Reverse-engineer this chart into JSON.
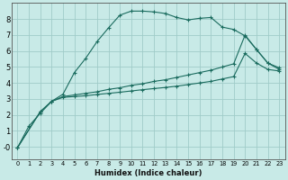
{
  "xlabel": "Humidex (Indice chaleur)",
  "background_color": "#c8eae7",
  "grid_color": "#a0ccc8",
  "line_color": "#1a6b5e",
  "xlim": [
    -0.5,
    23.5
  ],
  "ylim": [
    -0.8,
    9.0
  ],
  "xticks": [
    0,
    1,
    2,
    3,
    4,
    5,
    6,
    7,
    8,
    9,
    10,
    11,
    12,
    13,
    14,
    15,
    16,
    17,
    18,
    19,
    20,
    21,
    22,
    23
  ],
  "yticks": [
    0,
    1,
    2,
    3,
    4,
    5,
    6,
    7,
    8
  ],
  "ytick_labels": [
    "-0",
    "1",
    "2",
    "3",
    "4",
    "5",
    "6",
    "7",
    "8"
  ],
  "curve1_x": [
    0,
    1,
    2,
    3,
    4,
    5,
    6,
    7,
    8,
    9,
    10,
    11,
    12,
    13,
    14,
    15,
    16,
    17,
    18,
    19,
    20,
    21,
    22,
    23
  ],
  "curve1_y": [
    -0.05,
    1.3,
    2.1,
    2.85,
    3.3,
    4.65,
    5.55,
    6.6,
    7.45,
    8.25,
    8.5,
    8.5,
    8.45,
    8.35,
    8.1,
    7.95,
    8.05,
    8.1,
    7.5,
    7.35,
    6.95,
    6.1,
    5.25,
    4.95
  ],
  "curve2_x": [
    0,
    2,
    3,
    4,
    5,
    6,
    7,
    8,
    9,
    10,
    11,
    12,
    13,
    14,
    15,
    16,
    17,
    18,
    19,
    20,
    21,
    22,
    23
  ],
  "curve2_y": [
    -0.05,
    2.2,
    2.85,
    3.15,
    3.25,
    3.35,
    3.45,
    3.6,
    3.7,
    3.85,
    3.95,
    4.1,
    4.2,
    4.35,
    4.5,
    4.65,
    4.8,
    5.0,
    5.2,
    7.0,
    6.1,
    5.25,
    4.85
  ],
  "curve3_x": [
    0,
    2,
    3,
    4,
    5,
    6,
    7,
    8,
    9,
    10,
    11,
    12,
    13,
    14,
    15,
    16,
    17,
    18,
    19,
    20,
    21,
    22,
    23
  ],
  "curve3_y": [
    -0.05,
    2.2,
    2.85,
    3.1,
    3.15,
    3.2,
    3.28,
    3.35,
    3.42,
    3.5,
    3.58,
    3.65,
    3.72,
    3.8,
    3.9,
    4.0,
    4.1,
    4.25,
    4.4,
    5.85,
    5.25,
    4.85,
    4.75
  ]
}
